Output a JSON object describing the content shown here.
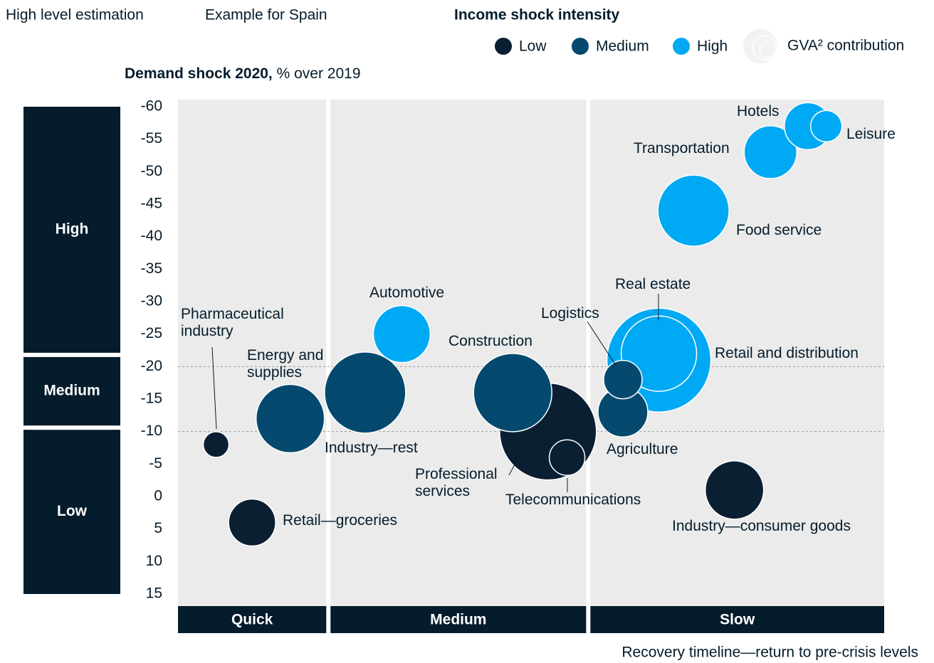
{
  "header": {
    "left": "High level estimation",
    "example": "Example for Spain"
  },
  "chart_data": {
    "type": "bubble",
    "y_label_bold": "Demand shock 2020,",
    "y_label": "% over 2019",
    "x_label": "Recovery timeline—return to pre-crisis levels",
    "legend_title": "Income shock intensity",
    "size_legend": "GVA² contribution",
    "ylim": [
      15,
      -60
    ],
    "yticks": [
      -60,
      -55,
      -50,
      -45,
      -40,
      -35,
      -30,
      -25,
      -20,
      -15,
      -10,
      -5,
      0,
      5,
      10,
      15
    ],
    "xlim": [
      0,
      100
    ],
    "ref_lines": [
      -20,
      -10
    ],
    "x_bands": [
      {
        "label": "Quick",
        "range": [
          0,
          21.3
        ]
      },
      {
        "label": "Medium",
        "range": [
          21.3,
          58.1
        ]
      },
      {
        "label": "Slow",
        "range": [
          58.1,
          100
        ]
      }
    ],
    "y_bands": [
      {
        "label": "High",
        "range": [
          -60,
          -21.8
        ]
      },
      {
        "label": "Medium",
        "range": [
          -21.8,
          -10.6
        ]
      },
      {
        "label": "Low",
        "range": [
          -10.6,
          15
        ]
      }
    ],
    "series": [
      {
        "name": "Low",
        "color": "#0b1f33",
        "labels": [
          "Pharmaceutical industry",
          "Retail—groceries",
          "Professional services",
          "Telecommunications",
          "Industry—consumer goods"
        ],
        "x": [
          5.4,
          10.5,
          52.4,
          55.1,
          78.8
        ],
        "values": [
          -8,
          4,
          -10,
          -6,
          -1
        ],
        "sizes": [
          18,
          33,
          68,
          25,
          41
        ]
      },
      {
        "name": "Medium",
        "color": "#054a6e",
        "labels": [
          "Energy and supplies",
          "Industry—rest",
          "Construction",
          "Logistics",
          "Agriculture"
        ],
        "x": [
          15.9,
          26.5,
          47.4,
          63,
          63
        ],
        "values": [
          -12,
          -16,
          -16,
          -18,
          -13
        ],
        "sizes": [
          48,
          57,
          55,
          27,
          35
        ]
      },
      {
        "name": "High",
        "color": "#00a9f4",
        "labels": [
          "Automotive",
          "Hotels",
          "Leisure",
          "Transportation",
          "Food service",
          "Retail and distribution",
          "Real estate"
        ],
        "x": [
          31.7,
          89.2,
          91.8,
          83.9,
          73,
          68.1,
          68.1
        ],
        "values": [
          -25,
          -57,
          -57,
          -53,
          -44,
          -21,
          -22
        ],
        "sizes": [
          40,
          33,
          22,
          37,
          50,
          73,
          53
        ]
      }
    ]
  }
}
